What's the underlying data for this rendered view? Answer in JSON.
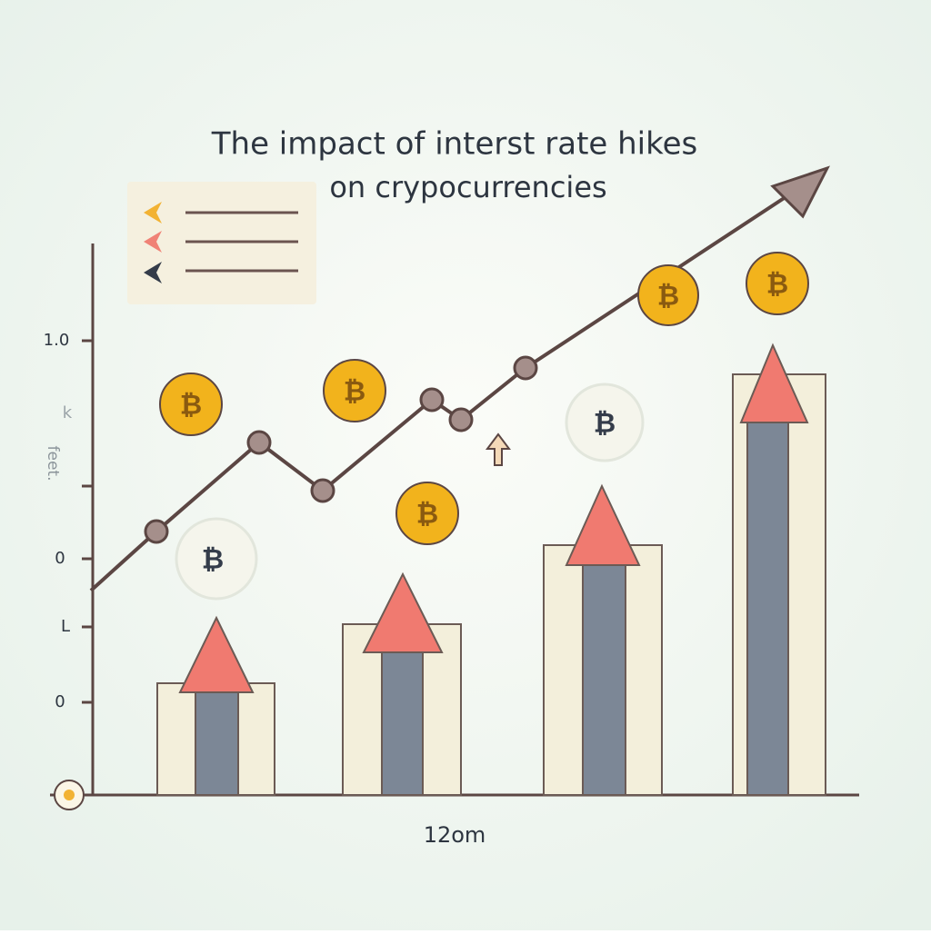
{
  "title": {
    "line1": "The impact of interst rate hikes",
    "line2": "on crypocurrencies"
  },
  "y_axis": {
    "label": "feet.",
    "tick_labels": [
      "1.0",
      "k",
      "0",
      "L",
      "0"
    ]
  },
  "x_axis": {
    "label": "12om"
  },
  "coin_symbol": "₿"
}
